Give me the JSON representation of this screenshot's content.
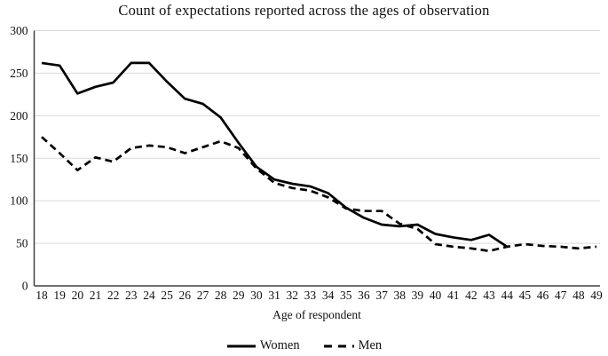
{
  "chart_data": {
    "type": "line",
    "title": "Count of expectations reported across the ages of observation",
    "xlabel": "Age of respondent",
    "ylabel": "",
    "ylim": [
      0,
      300
    ],
    "ytick_step": 50,
    "grid": "horizontal",
    "legend_position": "bottom",
    "x": [
      18,
      19,
      20,
      21,
      22,
      23,
      24,
      25,
      26,
      27,
      28,
      29,
      30,
      31,
      32,
      33,
      34,
      35,
      36,
      37,
      38,
      39,
      40,
      41,
      42,
      43,
      44,
      45,
      46,
      47,
      48,
      49
    ],
    "series": [
      {
        "name": "Women",
        "style": "solid",
        "x_start": 18,
        "values": [
          262,
          259,
          226,
          234,
          239,
          262,
          262,
          240,
          220,
          214,
          198,
          168,
          140,
          125,
          120,
          117,
          109,
          92,
          80,
          72,
          70,
          72,
          61,
          57,
          54,
          60,
          46
        ]
      },
      {
        "name": "Men",
        "style": "dashed",
        "x_start": 18,
        "values": [
          175,
          156,
          136,
          151,
          146,
          162,
          165,
          163,
          156,
          163,
          170,
          162,
          138,
          121,
          115,
          112,
          104,
          91,
          88,
          88,
          73,
          67,
          49,
          46,
          44,
          41,
          46,
          49,
          47,
          46,
          44,
          46
        ]
      }
    ],
    "colors": {
      "line": "#000000",
      "grid": "#d9d9d9",
      "axis": "#404040",
      "text": "#111111"
    }
  }
}
